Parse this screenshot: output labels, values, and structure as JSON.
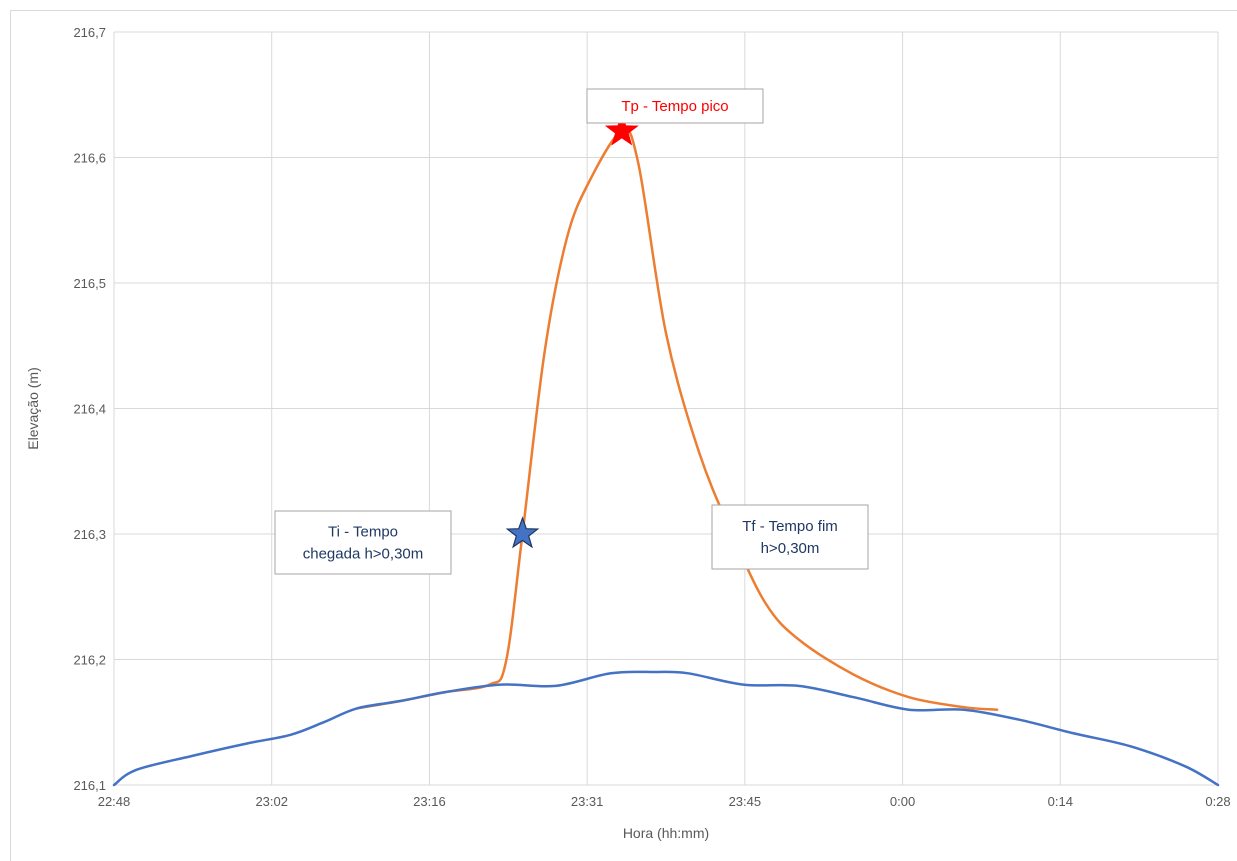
{
  "chart_data": {
    "type": "line",
    "title": "",
    "xlabel": "Hora (hh:mm)",
    "ylabel": "Elevação (m)",
    "x_ticks": [
      "22:48",
      "23:02",
      "23:16",
      "23:31",
      "23:45",
      "0:00",
      "0:14",
      "0:28"
    ],
    "x_range_minutes": [
      1368,
      1468
    ],
    "ylim": [
      216.1,
      216.7
    ],
    "y_ticks": [
      "216,1",
      "216,2",
      "216,3",
      "216,4",
      "216,5",
      "216,6",
      "216,7"
    ],
    "y_tick_values": [
      216.1,
      216.2,
      216.3,
      216.4,
      216.5,
      216.6,
      216.7
    ],
    "grid": true,
    "legend": "none",
    "series": [
      {
        "color": "#4472C4",
        "points": [
          [
            1368,
            216.1
          ],
          [
            1370,
            216.112
          ],
          [
            1375,
            216.123
          ],
          [
            1380,
            216.133
          ],
          [
            1384,
            216.14
          ],
          [
            1387,
            216.15
          ],
          [
            1390,
            216.161
          ],
          [
            1394,
            216.167
          ],
          [
            1398,
            216.174
          ],
          [
            1403,
            216.18
          ],
          [
            1408,
            216.179
          ],
          [
            1413,
            216.189
          ],
          [
            1417,
            216.19
          ],
          [
            1420,
            216.189
          ],
          [
            1425,
            216.18
          ],
          [
            1430,
            216.179
          ],
          [
            1435,
            216.17
          ],
          [
            1440,
            216.16
          ],
          [
            1445,
            216.16
          ],
          [
            1450,
            216.152
          ],
          [
            1455,
            216.141
          ],
          [
            1460,
            216.131
          ],
          [
            1465,
            216.115
          ],
          [
            1468,
            216.1
          ]
        ]
      },
      {
        "color": "#ED7D31",
        "points": [
          [
            1390,
            216.161
          ],
          [
            1394,
            216.167
          ],
          [
            1398,
            216.174
          ],
          [
            1402,
            216.18
          ],
          [
            1403.5,
            216.198
          ],
          [
            1405,
            216.3
          ],
          [
            1407,
            216.445
          ],
          [
            1409,
            216.535
          ],
          [
            1411,
            216.58
          ],
          [
            1414,
            216.621
          ],
          [
            1415.5,
            216.595
          ],
          [
            1418,
            216.46
          ],
          [
            1421,
            216.365
          ],
          [
            1424,
            216.3
          ],
          [
            1427,
            216.245
          ],
          [
            1430,
            216.216
          ],
          [
            1435,
            216.188
          ],
          [
            1440,
            216.17
          ],
          [
            1445,
            216.162
          ],
          [
            1448,
            216.16
          ]
        ]
      }
    ],
    "markers": [
      {
        "name": "Ti",
        "x": 1405,
        "y": 216.3,
        "color": "#4472C4"
      },
      {
        "name": "Tp",
        "x": 1414,
        "y": 216.621,
        "color": "#FF0000"
      },
      {
        "name": "Tf",
        "x": 1424,
        "y": 216.3,
        "color": "#4472C4"
      }
    ],
    "annotations": [
      {
        "id": "tp",
        "lines": [
          "Tp - Tempo pico"
        ],
        "color": "#FF0000"
      },
      {
        "id": "ti",
        "lines": [
          "Ti - Tempo",
          "chegada h>0,30m"
        ],
        "color": "#1F3864"
      },
      {
        "id": "tf",
        "lines": [
          "Tf - Tempo fim",
          "h>0,30m"
        ],
        "color": "#1F3864"
      }
    ],
    "colors": {
      "grid": "#d9d9d9",
      "axis_text": "#595959"
    }
  }
}
